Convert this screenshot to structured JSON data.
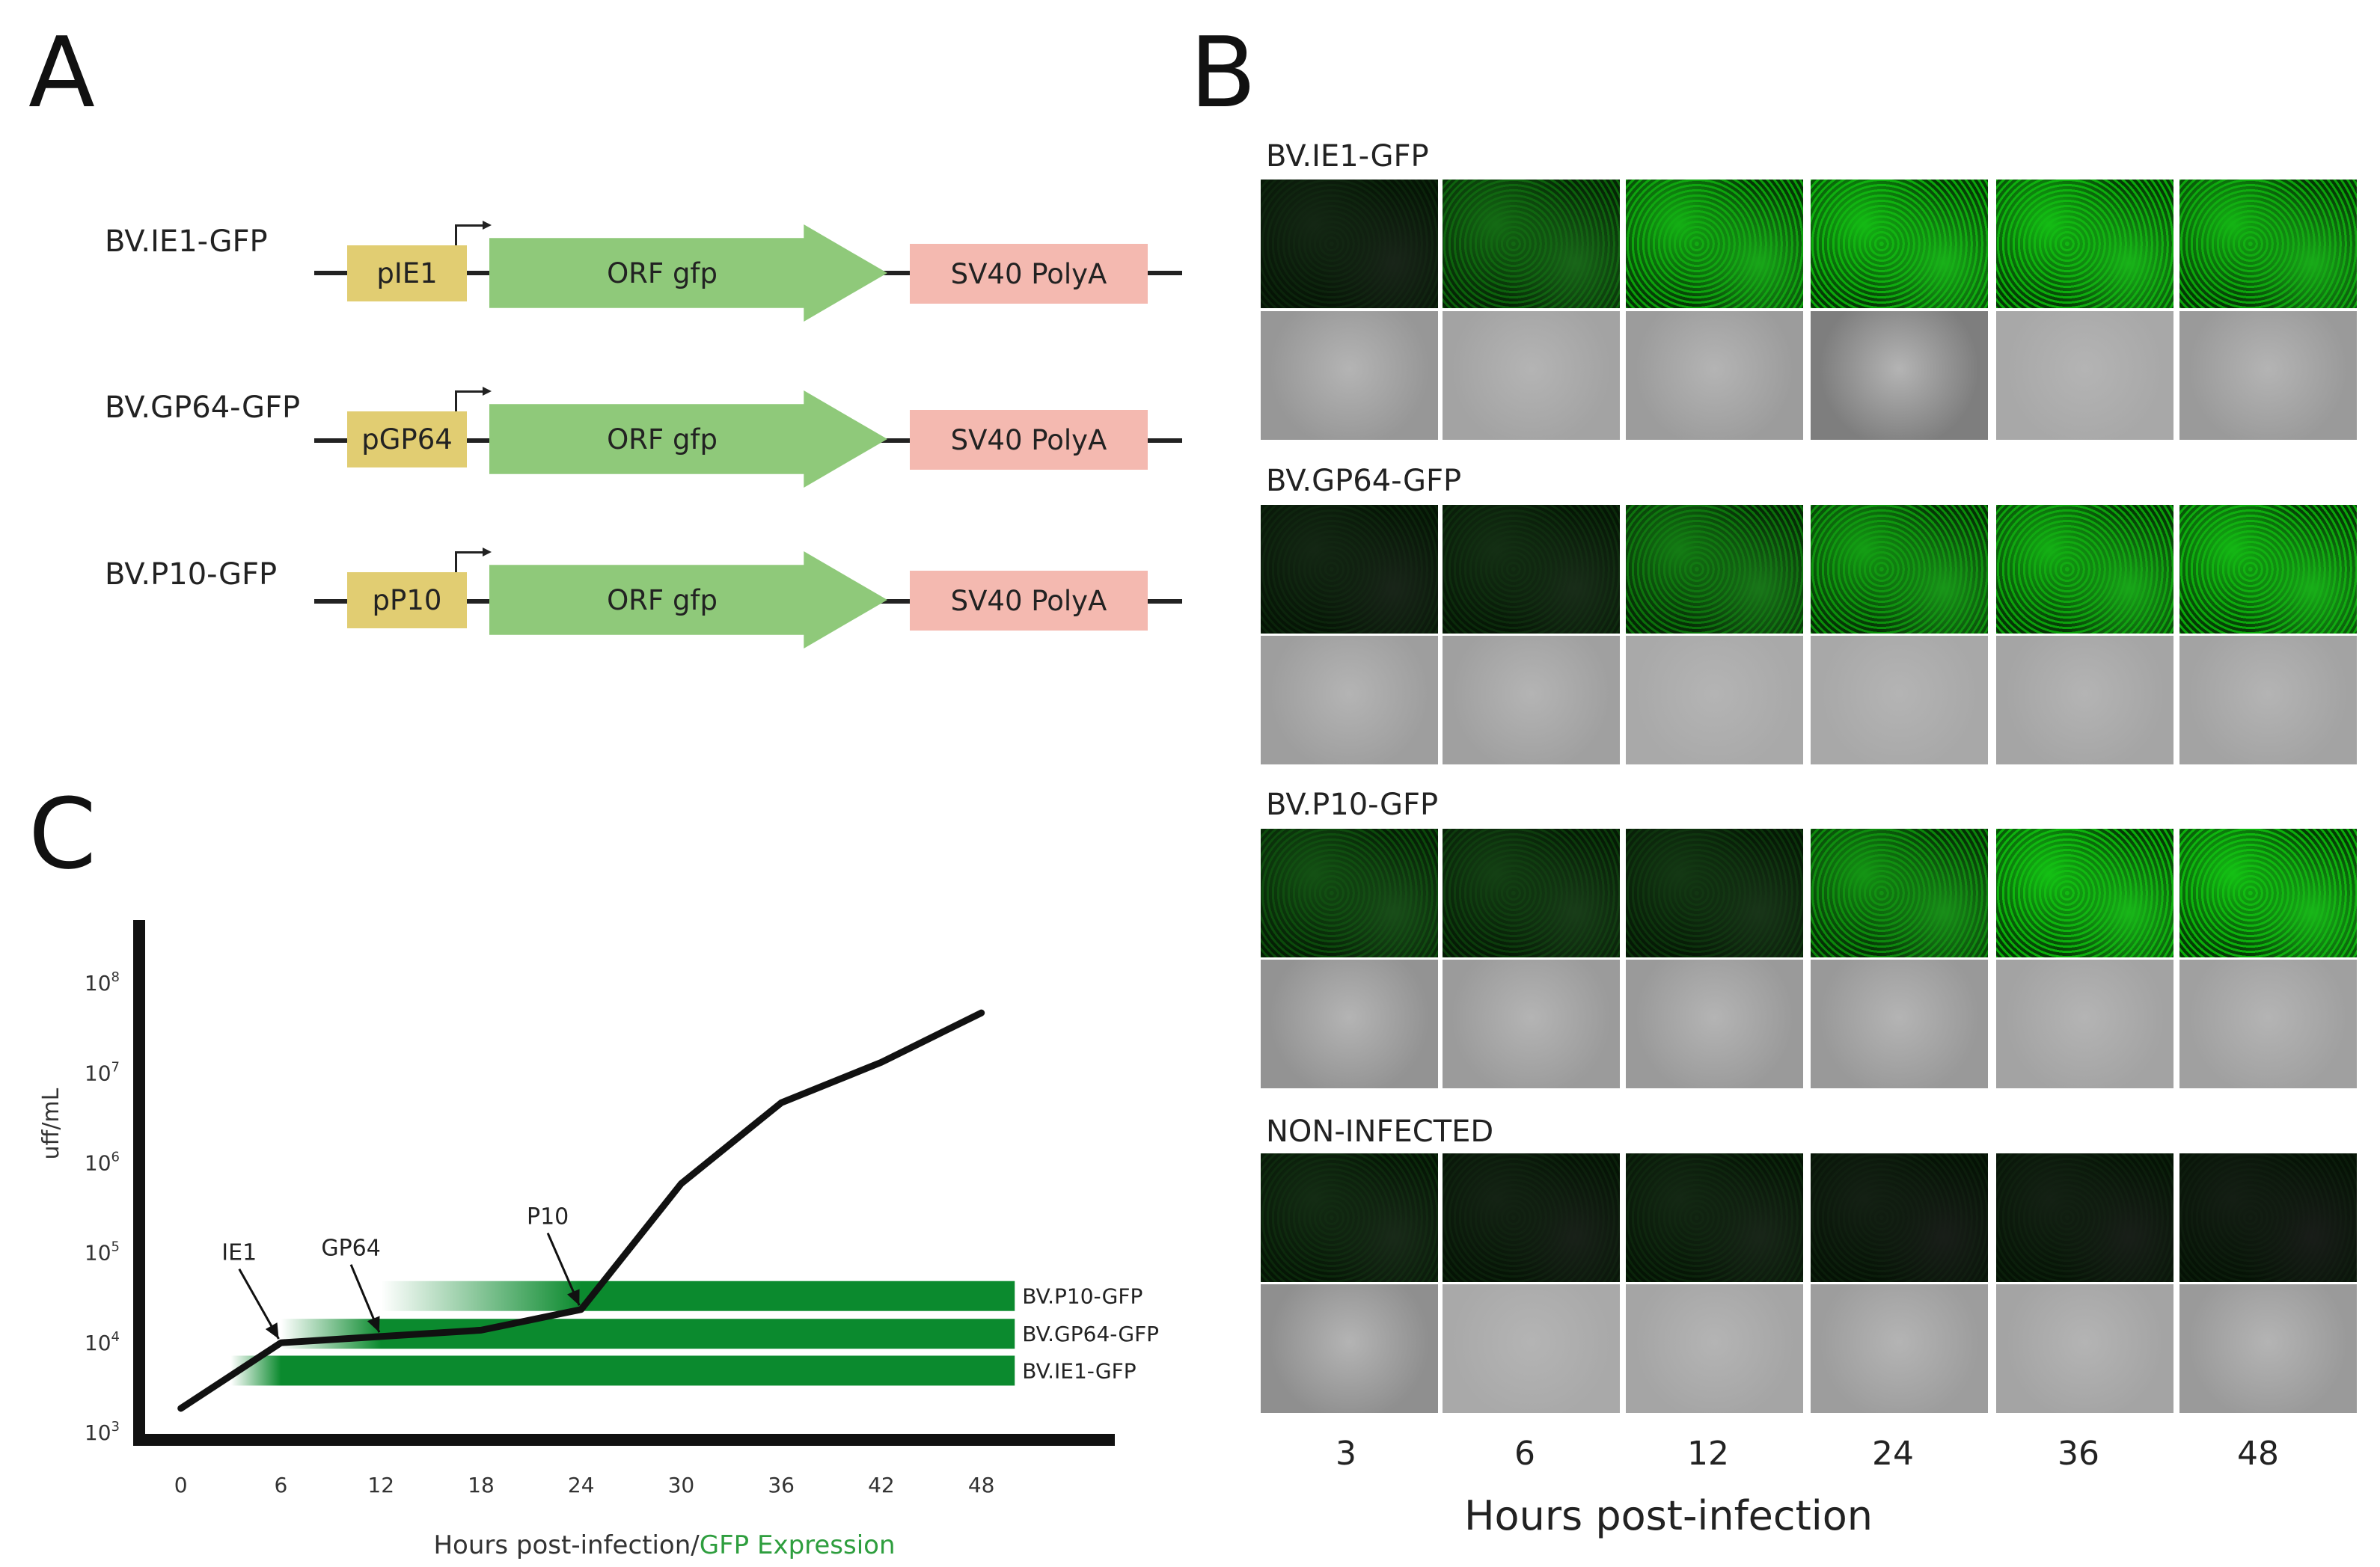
{
  "panels": {
    "a": "A",
    "b": "B",
    "c": "C"
  },
  "panel_a": {
    "constructs": [
      {
        "name": "BV.IE1-GFP",
        "promoter": "pIE1",
        "orf": "ORF gfp",
        "polya": "SV40 PolyA"
      },
      {
        "name": "BV.GP64-GFP",
        "promoter": "pGP64",
        "orf": "ORF gfp",
        "polya": "SV40 PolyA"
      },
      {
        "name": "BV.P10-GFP",
        "promoter": "pP10",
        "orf": "ORF gfp",
        "polya": "SV40 PolyA"
      }
    ],
    "colors": {
      "promoter": "#e1cd72",
      "orf": "#8fc97a",
      "polya": "#f4b9b0"
    }
  },
  "panel_b": {
    "rows": [
      {
        "label": "BV.IE1-GFP",
        "gfp_intensity": [
          0.05,
          0.45,
          0.85,
          0.92,
          0.93,
          0.88
        ]
      },
      {
        "label": "BV.GP64-GFP",
        "gfp_intensity": [
          0.05,
          0.1,
          0.55,
          0.75,
          0.85,
          0.9
        ]
      },
      {
        "label": "BV.P10-GFP",
        "gfp_intensity": [
          0.3,
          0.2,
          0.15,
          0.7,
          0.95,
          0.95
        ]
      },
      {
        "label": "NON-INFECTED",
        "gfp_intensity": [
          0.08,
          0.03,
          0.06,
          0.01,
          0.02,
          0.0
        ]
      }
    ],
    "timepoints": [
      "3",
      "6",
      "12",
      "24",
      "36",
      "48"
    ],
    "xlabel": "Hours post-infection"
  },
  "chart_data": {
    "type": "line",
    "ylabel": "uff/mL",
    "xlabel_parts": [
      "Hours post-infection/",
      "GFP Expression"
    ],
    "xlabel_colors": [
      "#333333",
      "#2e9e3e"
    ],
    "x_ticks": [
      0,
      6,
      12,
      18,
      24,
      30,
      36,
      42,
      48
    ],
    "y_ticks": [
      {
        "base": "10",
        "exp": "3",
        "log": 3
      },
      {
        "base": "10",
        "exp": "4",
        "log": 4
      },
      {
        "base": "10",
        "exp": "5",
        "log": 5
      },
      {
        "base": "10",
        "exp": "6",
        "log": 6
      },
      {
        "base": "10",
        "exp": "7",
        "log": 7
      },
      {
        "base": "10",
        "exp": "8",
        "log": 8
      }
    ],
    "xlim": [
      -2.5,
      56
    ],
    "ylim_log": [
      2.9,
      8.6
    ],
    "series": [
      {
        "name": "titer",
        "x": [
          0,
          6,
          18,
          24,
          30,
          36,
          42,
          48
        ],
        "log_y": [
          3.25,
          3.98,
          4.12,
          4.35,
          5.75,
          6.65,
          7.1,
          7.65
        ]
      }
    ],
    "annotations": [
      {
        "text": "IE1",
        "x": 6,
        "log_y": 3.98,
        "label_x": 3.5,
        "label_log_y": 4.9
      },
      {
        "text": "GP64",
        "x": 12,
        "log_y": 4.05,
        "label_x": 10.2,
        "label_log_y": 4.95
      },
      {
        "text": "P10",
        "x": 24,
        "log_y": 4.35,
        "label_x": 22.0,
        "label_log_y": 5.3
      }
    ],
    "expression_bars": [
      {
        "label": "BV.P10-GFP",
        "start": 12,
        "fade_end": 24,
        "end": 50,
        "log_y": 4.5
      },
      {
        "label": "BV.GP64-GFP",
        "start": 6,
        "fade_end": 12,
        "end": 50,
        "log_y": 4.08
      },
      {
        "label": "BV.IE1-GFP",
        "start": 3,
        "fade_end": 6,
        "end": 50,
        "log_y": 3.67
      }
    ],
    "bar_color": "#0b8a2e"
  }
}
